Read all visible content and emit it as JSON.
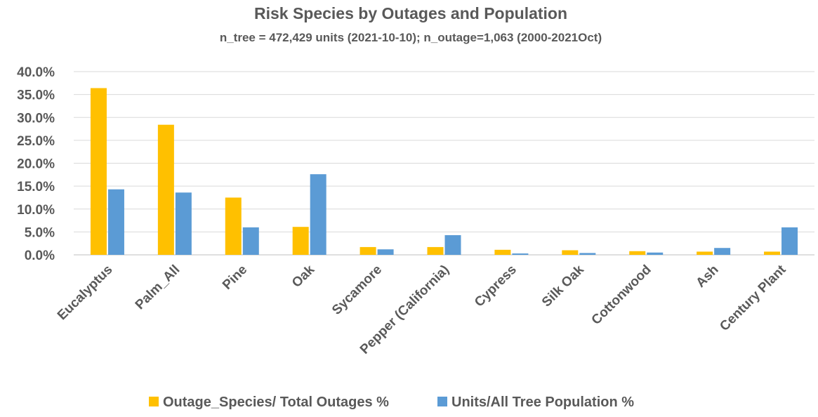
{
  "chart_data": {
    "type": "bar",
    "title": "Risk Species by Outages and Population",
    "subtitle": "n_tree = 472,429 units (2021-10-10); n_outage=1,063 (2000-2021Oct)",
    "categories": [
      "Eucalyptus",
      "Palm_All",
      "Pine",
      "Oak",
      "Sycamore",
      "Pepper (California)",
      "Cypress",
      "Silk Oak",
      "Cottonwood",
      "Ash",
      "Century Plant"
    ],
    "series": [
      {
        "name": "Outage_Species/ Total Outages %",
        "color": "#ffc000",
        "values": [
          36.4,
          28.4,
          12.5,
          6.1,
          1.7,
          1.7,
          1.1,
          1.0,
          0.8,
          0.7,
          0.7
        ]
      },
      {
        "name": "Units/All Tree Population %",
        "color": "#5b9bd5",
        "values": [
          14.3,
          13.6,
          6.0,
          17.6,
          1.2,
          4.3,
          0.3,
          0.4,
          0.5,
          1.5,
          6.0
        ]
      }
    ],
    "ylim": [
      0,
      40
    ],
    "yticks": [
      "0.0%",
      "5.0%",
      "10.0%",
      "15.0%",
      "20.0%",
      "25.0%",
      "30.0%",
      "35.0%",
      "40.0%"
    ],
    "grid": true,
    "legend_position": "bottom"
  }
}
